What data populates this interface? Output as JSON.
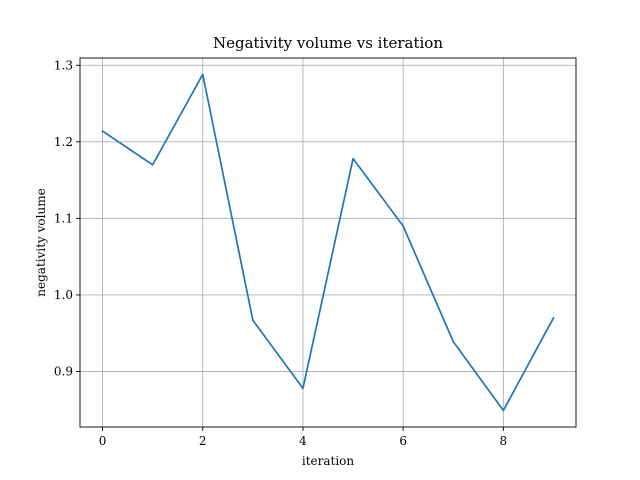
{
  "chart_data": {
    "type": "line",
    "title": "Negativity volume vs iteration",
    "xlabel": "iteration",
    "ylabel": "negativity volume",
    "x": [
      0,
      1,
      2,
      3,
      4,
      5,
      6,
      7,
      8,
      9
    ],
    "series": [
      {
        "values": [
          1.214,
          1.17,
          1.288,
          0.967,
          0.878,
          1.178,
          1.09,
          0.939,
          0.849,
          0.97
        ],
        "color": "#1f77b4"
      }
    ],
    "xlim": [
      -0.45,
      9.45
    ],
    "ylim": [
      0.8275,
      1.3095
    ],
    "xticks": [
      0,
      2,
      4,
      6,
      8
    ],
    "xtick_labels": [
      "0",
      "2",
      "4",
      "6",
      "8"
    ],
    "yticks": [
      0.9,
      1.0,
      1.1,
      1.2,
      1.3
    ],
    "ytick_labels": [
      "0.9",
      "1.0",
      "1.1",
      "1.2",
      "1.3"
    ],
    "grid": true
  }
}
